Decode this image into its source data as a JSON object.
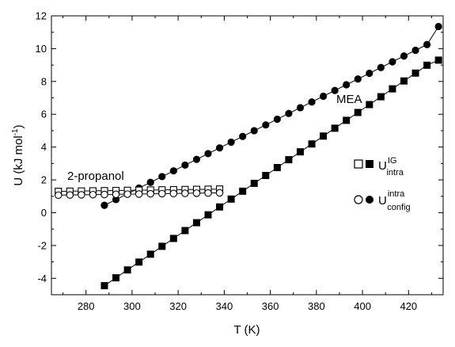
{
  "chart_data": {
    "type": "scatter",
    "xlabel": "T (K)",
    "ylabel": "U (kJ mol⁻¹)",
    "ylabel_main": "U (kJ mol",
    "ylabel_exp": "-1",
    "ylabel_close": ")",
    "xlim": [
      265,
      435
    ],
    "ylim": [
      -5,
      12
    ],
    "xticks": [
      280,
      300,
      320,
      340,
      360,
      380,
      400,
      420
    ],
    "yticks": [
      -4,
      -2,
      0,
      2,
      4,
      6,
      8,
      10,
      12
    ],
    "xminor_step": 10,
    "yminor_step": 1,
    "grid": false,
    "series": [
      {
        "system": "MEA",
        "symbol": "U_intra^IG",
        "marker": "square-filled",
        "x": [
          288,
          293,
          298,
          303,
          308,
          313,
          318,
          323,
          328,
          333,
          338,
          343,
          348,
          353,
          358,
          363,
          368,
          373,
          378,
          383,
          388,
          393,
          398,
          403,
          408,
          413,
          418,
          423,
          428,
          433
        ],
        "y": [
          -4.45,
          -3.97,
          -3.49,
          -3.01,
          -2.53,
          -2.05,
          -1.57,
          -1.09,
          -0.61,
          -0.13,
          0.35,
          0.83,
          1.31,
          1.79,
          2.27,
          2.75,
          3.23,
          3.71,
          4.19,
          4.67,
          5.15,
          5.63,
          6.11,
          6.59,
          7.07,
          7.55,
          8.03,
          8.51,
          8.99,
          9.3
        ]
      },
      {
        "system": "MEA",
        "symbol": "U_config^intra",
        "marker": "circle-filled",
        "x": [
          288,
          293,
          298,
          303,
          308,
          313,
          318,
          323,
          328,
          333,
          338,
          343,
          348,
          353,
          358,
          363,
          368,
          373,
          378,
          383,
          388,
          393,
          398,
          403,
          408,
          413,
          418,
          423,
          428,
          433
        ],
        "y": [
          0.45,
          0.8,
          1.15,
          1.5,
          1.85,
          2.2,
          2.55,
          2.9,
          3.25,
          3.6,
          3.95,
          4.3,
          4.65,
          5.0,
          5.35,
          5.7,
          6.05,
          6.4,
          6.75,
          7.1,
          7.45,
          7.8,
          8.15,
          8.5,
          8.85,
          9.2,
          9.55,
          9.9,
          10.25,
          11.35
        ]
      },
      {
        "system": "2-propanol",
        "symbol": "U_intra^IG",
        "marker": "square-open",
        "x": [
          268,
          273,
          278,
          283,
          288,
          293,
          298,
          303,
          308,
          313,
          318,
          323,
          328,
          333,
          338
        ],
        "y": [
          1.3,
          1.31,
          1.32,
          1.33,
          1.34,
          1.35,
          1.36,
          1.37,
          1.38,
          1.39,
          1.4,
          1.41,
          1.42,
          1.43,
          1.44
        ]
      },
      {
        "system": "2-propanol",
        "symbol": "U_config^intra",
        "marker": "circle-open",
        "x": [
          268,
          273,
          278,
          283,
          288,
          293,
          298,
          303,
          308,
          313,
          318,
          323,
          328,
          333,
          338
        ],
        "y": [
          1.07,
          1.08,
          1.09,
          1.1,
          1.11,
          1.12,
          1.13,
          1.14,
          1.15,
          1.16,
          1.17,
          1.18,
          1.19,
          1.2,
          1.21
        ]
      }
    ],
    "annotations": {
      "propanol": "2-propanol",
      "mea": "MEA"
    },
    "legend": {
      "placement": "right",
      "ig": {
        "base": "U",
        "sup": "IG",
        "sub": "intra"
      },
      "config": {
        "base": "U",
        "sup": "intra",
        "sub": "config"
      }
    }
  }
}
